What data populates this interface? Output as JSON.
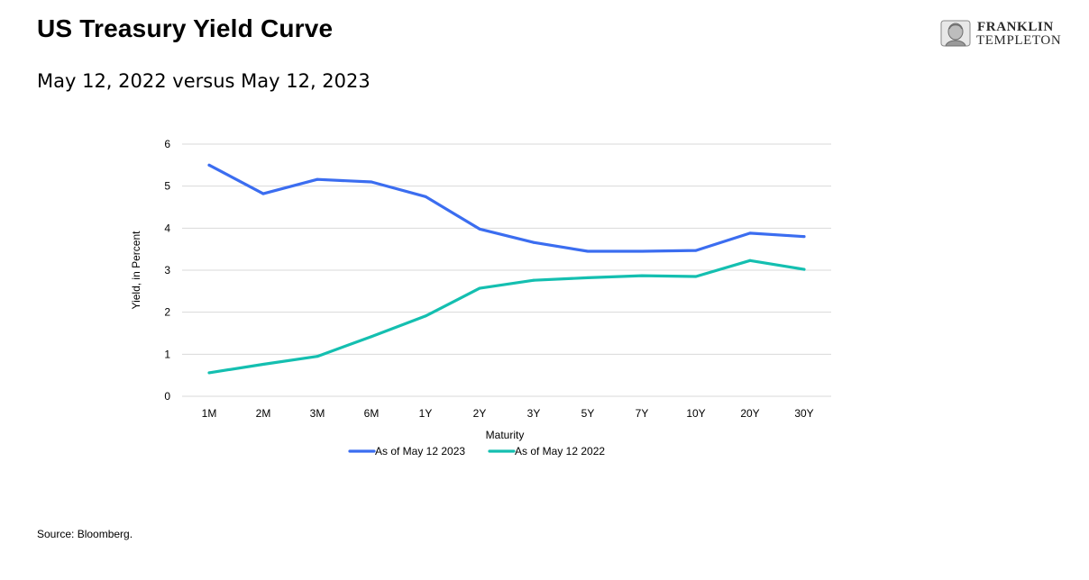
{
  "header": {
    "title": "US Treasury Yield Curve",
    "subtitle": "May 12, 2022 versus May 12, 2023"
  },
  "logo": {
    "line1": "FRANKLIN",
    "line2": "TEMPLETON"
  },
  "footer": {
    "source": "Source: Bloomberg."
  },
  "colors": {
    "series_2023": "#3b6df0",
    "series_2022": "#14bfb0",
    "grid": "#d9d9d9"
  },
  "chart_data": {
    "type": "line",
    "title": "",
    "xlabel": "Maturity",
    "ylabel": "Yield, in Percent",
    "ylim": [
      0,
      6
    ],
    "yticks": [
      0,
      1,
      2,
      3,
      4,
      5,
      6
    ],
    "grid": true,
    "legend_position": "bottom",
    "categories": [
      "1M",
      "2M",
      "3M",
      "6M",
      "1Y",
      "2Y",
      "3Y",
      "5Y",
      "7Y",
      "10Y",
      "20Y",
      "30Y"
    ],
    "series": [
      {
        "name": "As of May 12 2023",
        "color": "#3b6df0",
        "values": [
          5.5,
          4.82,
          5.16,
          5.1,
          4.75,
          3.98,
          3.66,
          3.45,
          3.45,
          3.47,
          3.88,
          3.8
        ]
      },
      {
        "name": "As of May 12 2022",
        "color": "#14bfb0",
        "values": [
          0.56,
          0.76,
          0.95,
          1.42,
          1.91,
          2.57,
          2.76,
          2.82,
          2.87,
          2.85,
          3.23,
          3.02
        ]
      }
    ]
  }
}
